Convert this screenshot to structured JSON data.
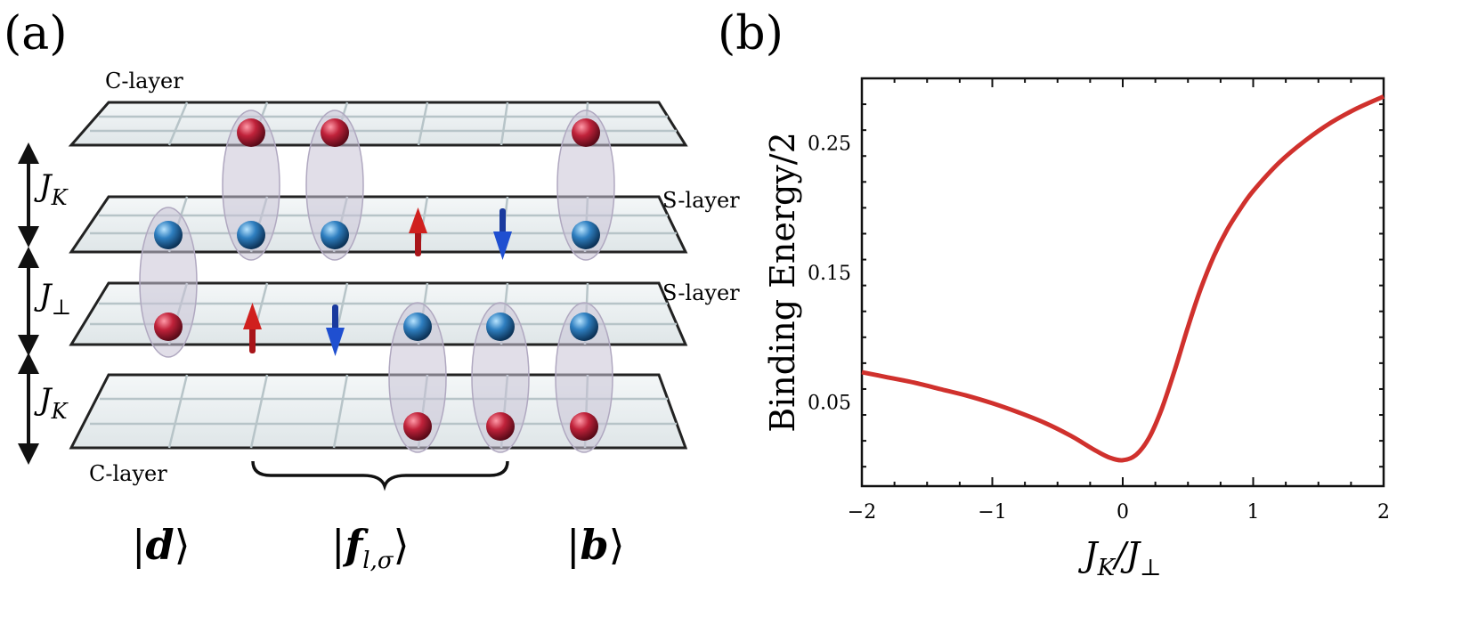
{
  "figure": {
    "panel_a": {
      "label": "(a)",
      "layers": [
        {
          "name": "C-layer",
          "side": "top"
        },
        {
          "name": "S-layer",
          "side": "right"
        },
        {
          "name": "S-layer",
          "side": "right"
        },
        {
          "name": "C-layer",
          "side": "bottom"
        }
      ],
      "couplings": [
        {
          "symbol": "J",
          "subscript": "K"
        },
        {
          "symbol": "J",
          "subscript": "⊥"
        },
        {
          "symbol": "J",
          "subscript": "K"
        }
      ],
      "states": [
        {
          "ket": "d",
          "subscript": ""
        },
        {
          "ket": "f",
          "subscript": "l,σ"
        },
        {
          "ket": "b",
          "subscript": ""
        }
      ],
      "colors": {
        "red_sphere": "#c0223a",
        "blue_sphere": "#2f7fc0",
        "up_arrow": "#d0201e",
        "down_arrow": "#1f4fd0",
        "plane": "#e8eef0",
        "pair": "#c9c3d6"
      }
    },
    "panel_b": {
      "label": "(b)",
      "xlabel_main": "J",
      "xlabel_sub1": "K",
      "xlabel_sep": "/J",
      "xlabel_sub2": "⊥",
      "ylabel": "Binding Energy/2"
    }
  },
  "chart_data": {
    "type": "line",
    "title": "",
    "xlabel": "J_K/J_⊥",
    "ylabel": "Binding Energy/2",
    "xlim": [
      -2,
      2
    ],
    "ylim": [
      -0.015,
      0.3
    ],
    "xticks": [
      -2,
      -1,
      0,
      1,
      2
    ],
    "xtick_labels": [
      "−2",
      "−1",
      "0",
      "1",
      "2"
    ],
    "yticks": [
      0.05,
      0.15,
      0.25
    ],
    "ytick_labels": [
      "0.05",
      "0.15",
      "0.25"
    ],
    "series": [
      {
        "name": "binding energy",
        "color": "#d0312d",
        "x": [
          -2.0,
          -1.8,
          -1.6,
          -1.4,
          -1.2,
          -1.0,
          -0.8,
          -0.6,
          -0.4,
          -0.3,
          -0.2,
          -0.1,
          0.0,
          0.1,
          0.2,
          0.3,
          0.4,
          0.5,
          0.6,
          0.7,
          0.8,
          0.9,
          1.0,
          1.2,
          1.4,
          1.6,
          1.8,
          2.0
        ],
        "y": [
          0.073,
          0.069,
          0.065,
          0.06,
          0.055,
          0.049,
          0.042,
          0.034,
          0.024,
          0.018,
          0.012,
          0.007,
          0.005,
          0.009,
          0.022,
          0.045,
          0.075,
          0.108,
          0.138,
          0.163,
          0.183,
          0.199,
          0.213,
          0.235,
          0.252,
          0.266,
          0.277,
          0.286
        ]
      }
    ]
  }
}
